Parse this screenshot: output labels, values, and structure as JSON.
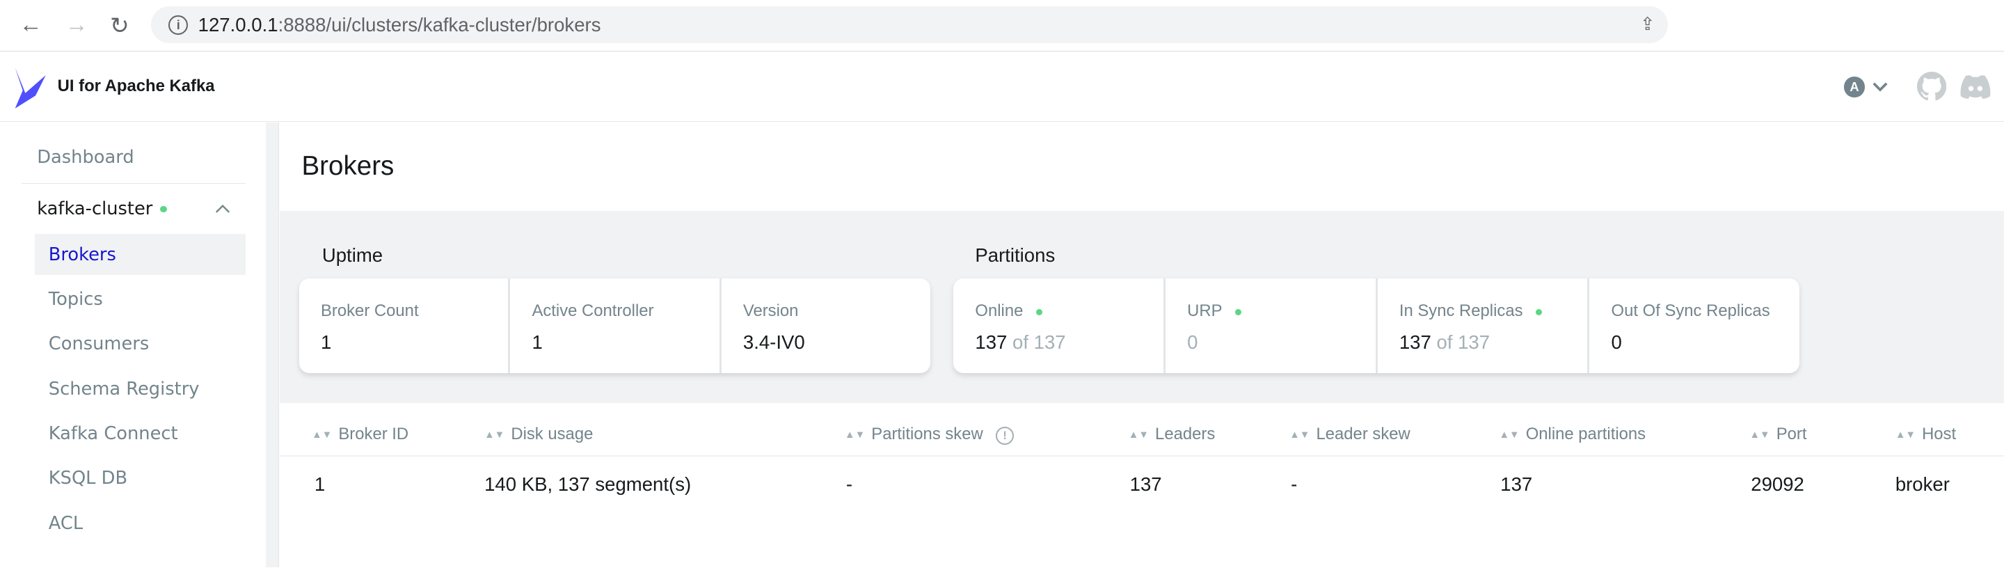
{
  "browser": {
    "url_host": "127.0.0.1",
    "url_rest": ":8888/ui/clusters/kafka-cluster/brokers"
  },
  "header": {
    "brand": "UI for Apache Kafka",
    "avatar_letter": "A",
    "brand_color": "#4f4ffe"
  },
  "sidebar": {
    "dashboard": "Dashboard",
    "cluster": "kafka-cluster",
    "items": [
      {
        "label": "Brokers",
        "active": true
      },
      {
        "label": "Topics"
      },
      {
        "label": "Consumers"
      },
      {
        "label": "Schema Registry"
      },
      {
        "label": "Kafka Connect"
      },
      {
        "label": "KSQL DB"
      },
      {
        "label": "ACL"
      }
    ]
  },
  "main": {
    "title": "Brokers",
    "uptime": {
      "heading": "Uptime",
      "cells": [
        {
          "label": "Broker Count",
          "value": "1"
        },
        {
          "label": "Active Controller",
          "value": "1"
        },
        {
          "label": "Version",
          "value": "3.4-IV0"
        }
      ]
    },
    "partitions": {
      "heading": "Partitions",
      "cells": [
        {
          "label": "Online",
          "value": "137",
          "of": "of 137"
        },
        {
          "label": "URP",
          "value": "0"
        },
        {
          "label": "In Sync Replicas",
          "value": "137",
          "of": "of 137"
        },
        {
          "label": "Out Of Sync Replicas",
          "value": "0"
        }
      ]
    },
    "table": {
      "columns": [
        "Broker ID",
        "Disk usage",
        "Partitions skew",
        "Leaders",
        "Leader skew",
        "Online partitions",
        "Port",
        "Host"
      ],
      "rows": [
        [
          "1",
          "140 KB, 137 segment(s)",
          "-",
          "137",
          "-",
          "137",
          "29092",
          "broker"
        ]
      ]
    }
  }
}
